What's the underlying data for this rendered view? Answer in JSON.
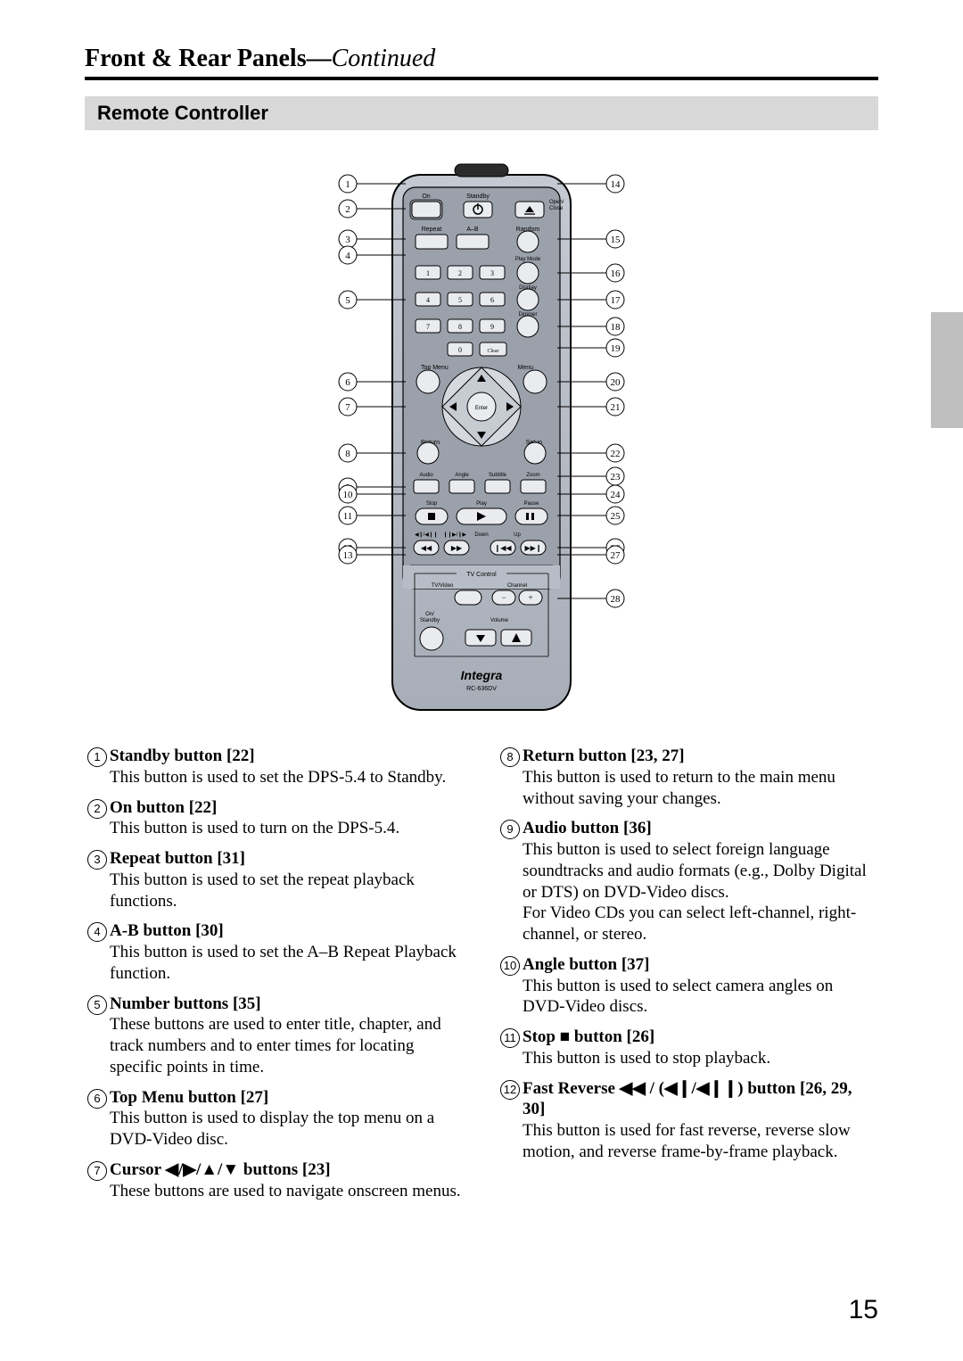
{
  "header": {
    "title_main": "Front & Rear Panels",
    "title_sep": "—",
    "title_cont": "Continued"
  },
  "section_title": "Remote Controller",
  "page_number": "15",
  "remote": {
    "brand": "Integra",
    "model": "RC-636DV",
    "labels": {
      "on": "On",
      "standby": "Standby",
      "open_close": "Open/\nClose",
      "repeat": "Repeat",
      "a_b": "A–B",
      "random": "Random",
      "play_mode": "Play Mode",
      "display": "Display",
      "dimmer": "Dimmer",
      "clear": "Clear",
      "top_menu": "Top Menu",
      "menu": "Menu",
      "enter": "Enter",
      "return": "Return",
      "setup": "Setup",
      "audio": "Audio",
      "angle": "Angle",
      "subtitle": "Subtitle",
      "zoom": "Zoom",
      "stop": "Stop",
      "play": "Play",
      "pause": "Pause",
      "down": "Down",
      "up": "Up",
      "tv_control": "TV Control",
      "tv_video": "TV/Video",
      "channel": "Channel",
      "on_standby": "On/\nStandby",
      "volume": "Volume"
    },
    "left_callouts": [
      1,
      2,
      3,
      4,
      5,
      6,
      7,
      8,
      9,
      10,
      11,
      12,
      13
    ],
    "right_callouts": [
      14,
      15,
      16,
      17,
      18,
      19,
      20,
      21,
      22,
      23,
      24,
      25,
      26,
      27,
      28
    ]
  },
  "descriptions_left": [
    {
      "n": "1",
      "title": "Standby button [22]",
      "body": "This button is used to set the DPS-5.4 to Standby."
    },
    {
      "n": "2",
      "title": "On button [22]",
      "body": "This button is used to turn on the DPS-5.4."
    },
    {
      "n": "3",
      "title": "Repeat button [31]",
      "body": "This button is used to set the repeat playback functions."
    },
    {
      "n": "4",
      "title": "A-B button [30]",
      "body": "This button is used to set the A–B Repeat Playback function."
    },
    {
      "n": "5",
      "title": "Number buttons [35]",
      "body": "These buttons are used to enter title, chapter, and track numbers and to enter times for locating specific points in time."
    },
    {
      "n": "6",
      "title": "Top Menu button [27]",
      "body": "This button is used to display the top menu on a DVD-Video disc."
    },
    {
      "n": "7",
      "title": "Cursor ◀/▶/▲/▼ buttons [23]",
      "body": "These buttons are used to navigate onscreen menus."
    }
  ],
  "descriptions_right": [
    {
      "n": "8",
      "title": "Return button [23, 27]",
      "body": "This button is used to return to the main menu without saving your changes."
    },
    {
      "n": "9",
      "title": "Audio button [36]",
      "body": "This button is used to select foreign language soundtracks and audio formats (e.g., Dolby Digital or DTS) on DVD-Video discs.\nFor Video CDs you can select left-channel, right-channel, or stereo."
    },
    {
      "n": "10",
      "title": "Angle button [37]",
      "body": "This button is used to select camera angles on DVD-Video discs."
    },
    {
      "n": "11",
      "title": "Stop ■ button [26]",
      "body": "This button is used to stop playback."
    },
    {
      "n": "12",
      "title": "Fast Reverse ◀◀ / (◀❙/◀❙❙) button [26, 29, 30]",
      "body": "This button is used for fast reverse, reverse slow motion, and reverse frame-by-frame playback."
    }
  ],
  "colors": {
    "page_bg": "#ffffff",
    "text": "#000000",
    "section_bg": "#d8d8d8",
    "side_tab": "#bfbfbf",
    "remote_body": "#b7bdc6",
    "remote_body_dark": "#8e949e",
    "remote_button": "#e9ebef",
    "remote_button_dark": "#6b6f77"
  }
}
